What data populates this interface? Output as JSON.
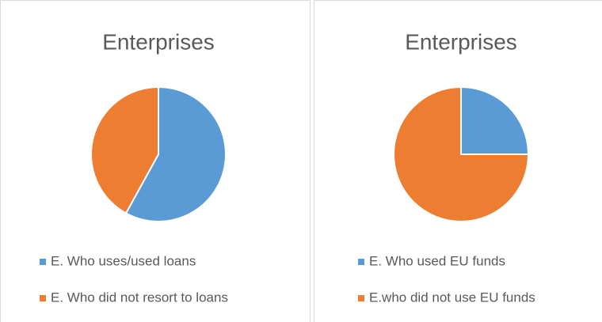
{
  "chart_data": [
    {
      "type": "pie",
      "title": "Enterprises",
      "categories": [
        "E. Who uses/used loans",
        "E. Who did not resort to loans"
      ],
      "values": [
        58,
        42
      ],
      "colors": [
        "#5b9bd5",
        "#ed7d31"
      ]
    },
    {
      "type": "pie",
      "title": "Enterprises",
      "categories": [
        "E. Who used EU funds",
        "E.who did not use EU funds"
      ],
      "values": [
        25,
        75
      ],
      "colors": [
        "#5b9bd5",
        "#ed7d31"
      ]
    }
  ]
}
